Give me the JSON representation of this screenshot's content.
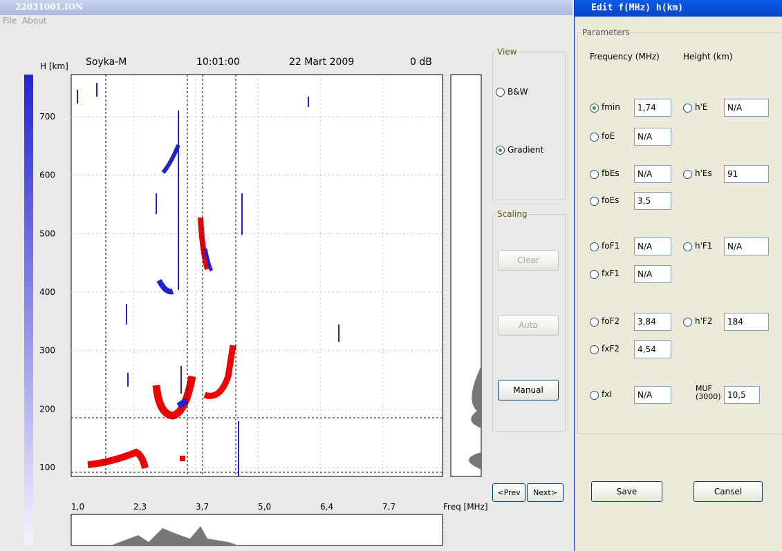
{
  "main_window": {
    "title": "22031001.ION",
    "menu": [
      "File",
      "About"
    ]
  },
  "ionogram": {
    "station": "Soyka-M",
    "time": "10:01:00",
    "date": "22 Mart 2009",
    "gain": "0 dB",
    "y_axis_label": "H [km]",
    "y_ticks": [
      700,
      600,
      500,
      400,
      300,
      200,
      100
    ],
    "x_axis_label": "Freq [MHz]",
    "x_ticks": [
      "1,0",
      "2,3",
      "3,7",
      "5,0",
      "6,4",
      "7,7"
    ]
  },
  "view": {
    "title": "View",
    "options": [
      "B&W",
      "Gradient"
    ],
    "selected": 1
  },
  "scaling": {
    "title": "Scaling",
    "buttons": [
      {
        "label": "Clear",
        "enabled": false
      },
      {
        "label": "Auto",
        "enabled": false
      },
      {
        "label": "Manual",
        "enabled": true
      }
    ]
  },
  "navigation": [
    "<Prev",
    "Next>"
  ],
  "edit_window": {
    "title": "Edit  f(MHz) h(km)",
    "group": "Parameters",
    "columns": [
      "Frequency (MHz)",
      "Height (km)"
    ],
    "rows": [
      {
        "freq": {
          "label": "fmin",
          "value": "1,74",
          "selected": true
        },
        "height": {
          "label": "h'E",
          "value": "N/A"
        }
      },
      {
        "freq": {
          "label": "foE",
          "value": "N/A"
        }
      },
      {
        "freq": {
          "label": "fbEs",
          "value": "N/A"
        },
        "height": {
          "label": "h'Es",
          "value": "91"
        }
      },
      {
        "freq": {
          "label": "foEs",
          "value": "3,5"
        }
      },
      {
        "freq": {
          "label": "foF1",
          "value": "N/A"
        },
        "height": {
          "label": "h'F1",
          "value": "N/A"
        }
      },
      {
        "freq": {
          "label": "fxF1",
          "value": "N/A"
        }
      },
      {
        "freq": {
          "label": "foF2",
          "value": "3,84"
        },
        "height": {
          "label": "h'F2",
          "value": "184"
        }
      },
      {
        "freq": {
          "label": "fxF2",
          "value": "4,54"
        }
      },
      {
        "freq": {
          "label": "fxI",
          "value": "N/A"
        },
        "height": {
          "label": "MUF (3000)",
          "value": "10,5",
          "plain": true
        }
      }
    ],
    "buttons": [
      "Save",
      "Cansel"
    ]
  }
}
